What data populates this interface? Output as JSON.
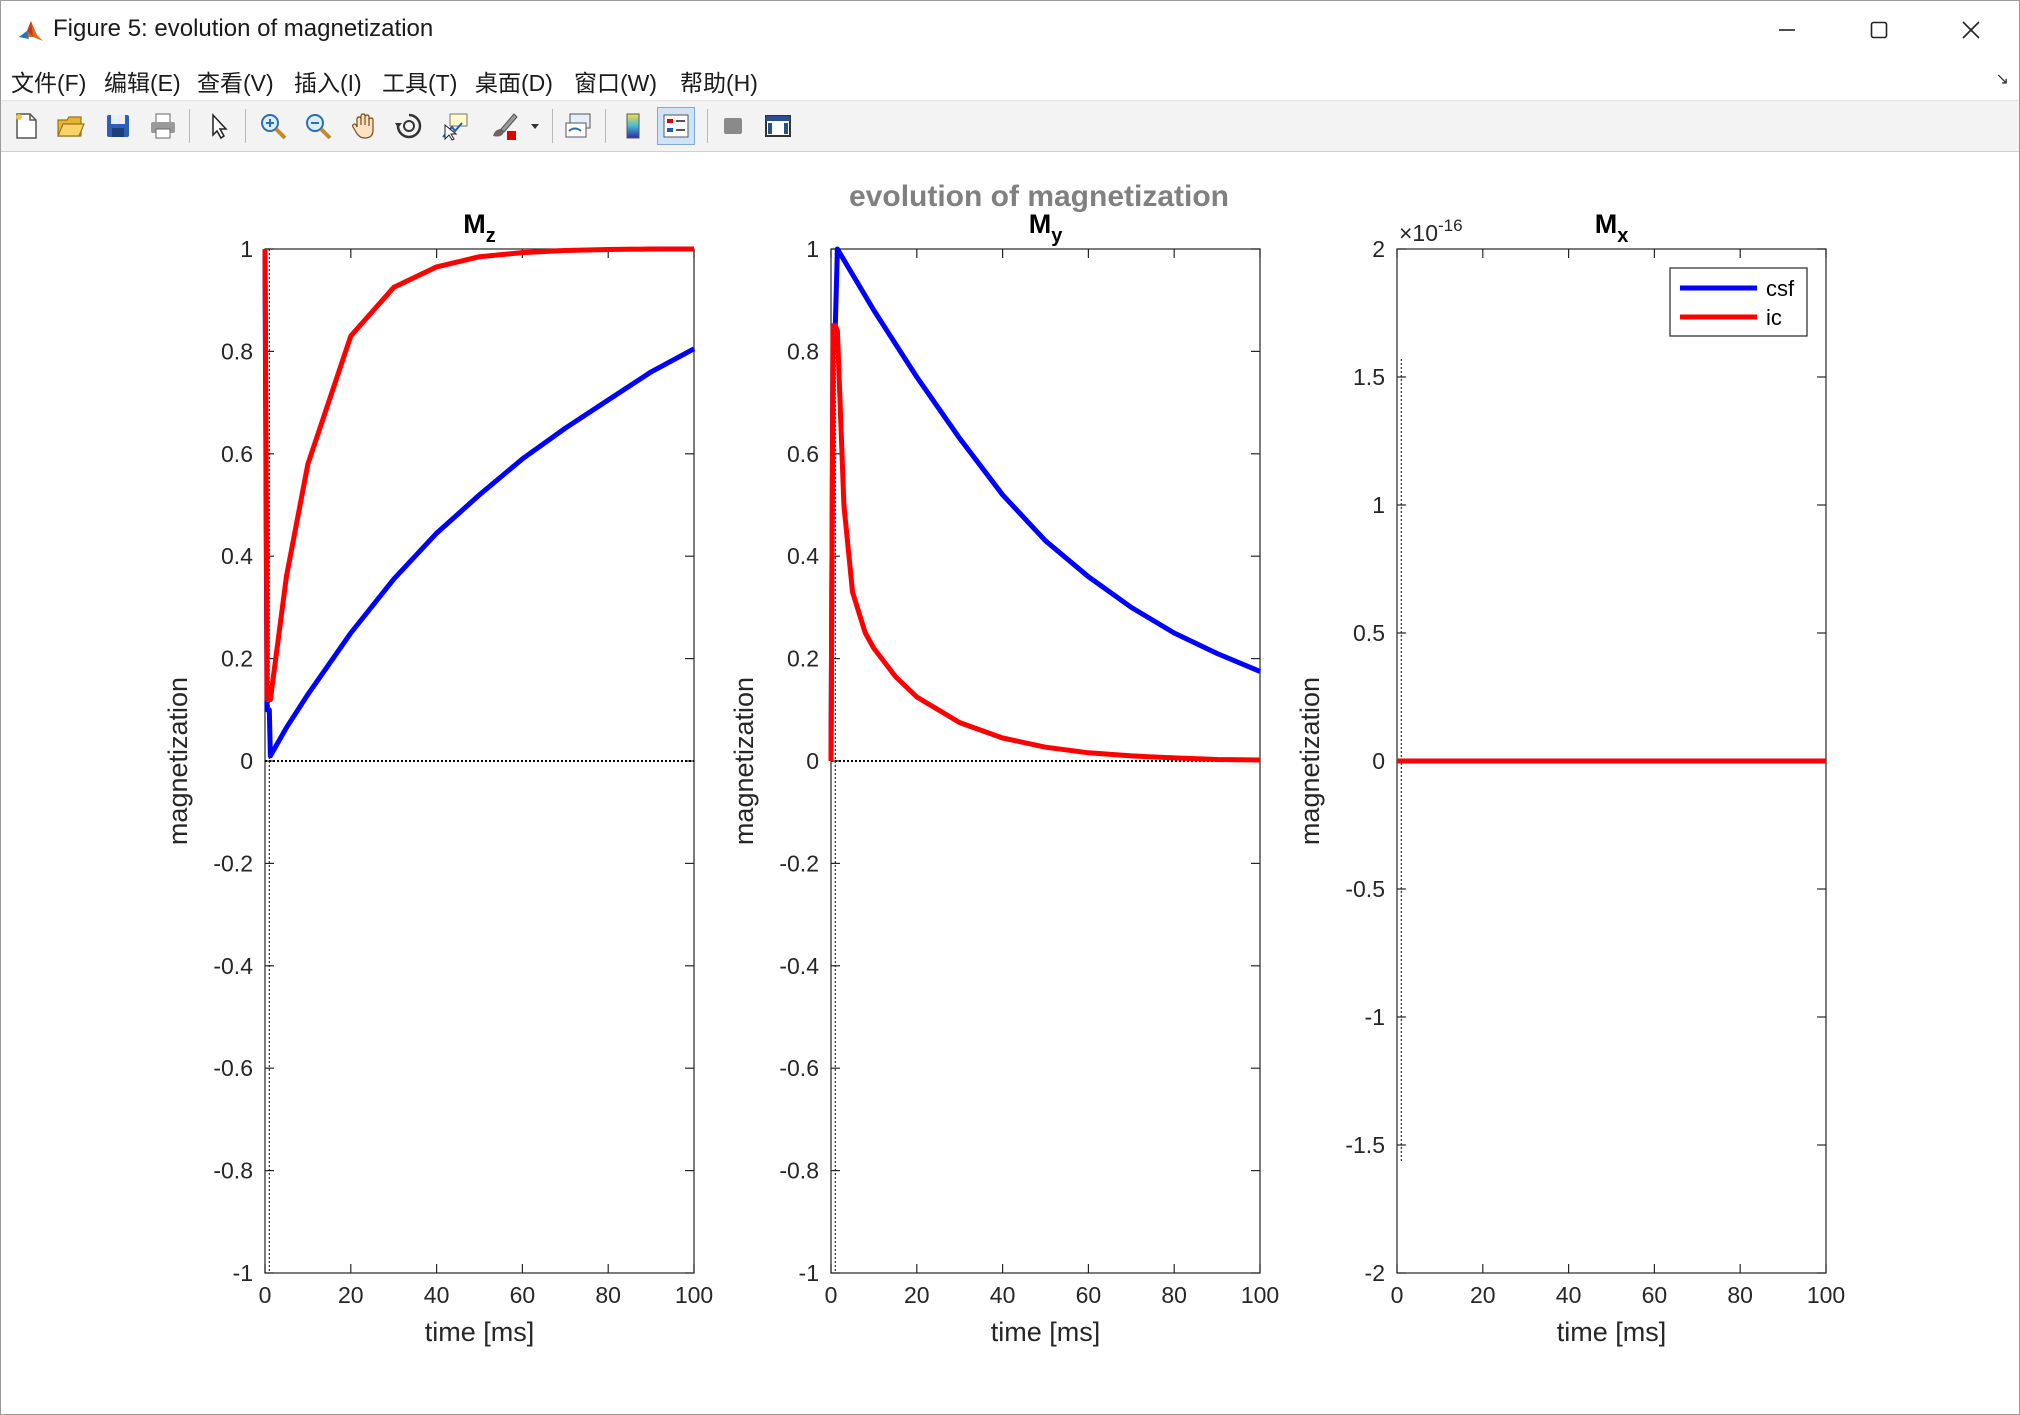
{
  "window": {
    "title": "Figure 5: evolution of magnetization"
  },
  "menu": [
    "文件(F)",
    "编辑(E)",
    "查看(V)",
    "插入(I)",
    "工具(T)",
    "桌面(D)",
    "窗口(W)",
    "帮助(H)"
  ],
  "toolbar": {
    "icons": [
      "new-figure-icon",
      "open-file-icon",
      "save-icon",
      "print-icon",
      "edit-plot-cursor-icon",
      "zoom-in-icon",
      "zoom-out-icon",
      "pan-hand-icon",
      "rotate-3d-icon",
      "data-cursor-icon",
      "brush-icon",
      "brush-dropdown-icon",
      "link-plot-icon",
      "insert-colorbar-icon",
      "insert-legend-icon",
      "hide-plot-tools-icon",
      "show-plot-tools-icon"
    ]
  },
  "figure": {
    "suptitle": "evolution of magnetization"
  },
  "chart_data": [
    {
      "type": "line",
      "title": "M",
      "title_sub": "z",
      "xlabel": "time [ms]",
      "ylabel": "magnetization",
      "xlim": [
        0,
        100
      ],
      "ylim": [
        -1,
        1
      ],
      "xticks": [
        0,
        20,
        40,
        60,
        80,
        100
      ],
      "yticks": [
        -1,
        -0.8,
        -0.6,
        -0.4,
        -0.2,
        0,
        0.2,
        0.4,
        0.6,
        0.8,
        1
      ],
      "ytick_labels": [
        "-1",
        "-0.8",
        "-0.6",
        "-0.4",
        "-0.2",
        "0",
        "0.2",
        "0.4",
        "0.6",
        "0.8",
        "1"
      ],
      "grid": false,
      "series": [
        {
          "name": "csf",
          "color": "#0000ff",
          "x": [
            0,
            0.25,
            0.5,
            1,
            1.25,
            5,
            10,
            20,
            30,
            40,
            50,
            60,
            70,
            80,
            90,
            100
          ],
          "y": [
            1,
            0.5,
            0.1,
            0.1,
            0.01,
            0.065,
            0.13,
            0.25,
            0.355,
            0.445,
            0.52,
            0.59,
            0.65,
            0.705,
            0.76,
            0.805
          ]
        },
        {
          "name": "ic",
          "color": "#ff0000",
          "x": [
            0,
            0.25,
            0.5,
            1,
            1.25,
            5,
            10,
            20,
            30,
            40,
            50,
            60,
            70,
            80,
            90,
            100
          ],
          "y": [
            1,
            0.6,
            0.12,
            0.12,
            0.12,
            0.36,
            0.58,
            0.83,
            0.925,
            0.965,
            0.985,
            0.993,
            0.997,
            0.999,
            1.0,
            1.0
          ]
        }
      ],
      "refline_y": 0,
      "marker_x": 1.0
    },
    {
      "type": "line",
      "title": "M",
      "title_sub": "y",
      "xlabel": "time [ms]",
      "ylabel": "magnetization",
      "xlim": [
        0,
        100
      ],
      "ylim": [
        -1,
        1
      ],
      "xticks": [
        0,
        20,
        40,
        60,
        80,
        100
      ],
      "yticks": [
        -1,
        -0.8,
        -0.6,
        -0.4,
        -0.2,
        0,
        0.2,
        0.4,
        0.6,
        0.8,
        1
      ],
      "ytick_labels": [
        "-1",
        "-0.8",
        "-0.6",
        "-0.4",
        "-0.2",
        "0",
        "0.2",
        "0.4",
        "0.6",
        "0.8",
        "1"
      ],
      "grid": false,
      "series": [
        {
          "name": "csf",
          "color": "#0000ff",
          "x": [
            0,
            0.5,
            1,
            1.5,
            10,
            20,
            30,
            40,
            50,
            60,
            70,
            80,
            90,
            100
          ],
          "y": [
            0,
            0.85,
            0.85,
            1.0,
            0.88,
            0.75,
            0.63,
            0.52,
            0.43,
            0.36,
            0.3,
            0.25,
            0.21,
            0.175
          ]
        },
        {
          "name": "ic",
          "color": "#ff0000",
          "x": [
            0,
            0.5,
            1,
            1.5,
            3,
            5,
            8,
            10,
            15,
            20,
            30,
            40,
            50,
            60,
            70,
            80,
            90,
            100
          ],
          "y": [
            0,
            0.85,
            0.85,
            0.84,
            0.5,
            0.33,
            0.25,
            0.22,
            0.165,
            0.125,
            0.075,
            0.045,
            0.027,
            0.016,
            0.01,
            0.006,
            0.003,
            0.002
          ]
        }
      ],
      "refline_y": 0,
      "marker_x": 1.0
    },
    {
      "type": "line",
      "title": "M",
      "title_sub": "x",
      "xlabel": "time [ms]",
      "ylabel": "magnetization",
      "xlim": [
        0,
        100
      ],
      "ylim": [
        -2,
        2
      ],
      "xticks": [
        0,
        20,
        40,
        60,
        80,
        100
      ],
      "yticks": [
        -2,
        -1.5,
        -1,
        -0.5,
        0,
        0.5,
        1,
        1.5,
        2
      ],
      "ytick_labels": [
        "-2",
        "-1.5",
        "-1",
        "-0.5",
        "0",
        "0.5",
        "1",
        "1.5",
        "2"
      ],
      "y_exponent_base": "×10",
      "y_exponent_power": "-16",
      "grid": false,
      "legend": {
        "position": "top-right",
        "entries": [
          "csf",
          "ic"
        ]
      },
      "series": [
        {
          "name": "csf",
          "color": "#0000ff",
          "x": [
            0,
            100
          ],
          "y": [
            0,
            0
          ]
        },
        {
          "name": "ic",
          "color": "#ff0000",
          "x": [
            0,
            100
          ],
          "y": [
            0,
            0
          ]
        }
      ],
      "refline_y": 0,
      "marker_x": 1.0
    }
  ]
}
